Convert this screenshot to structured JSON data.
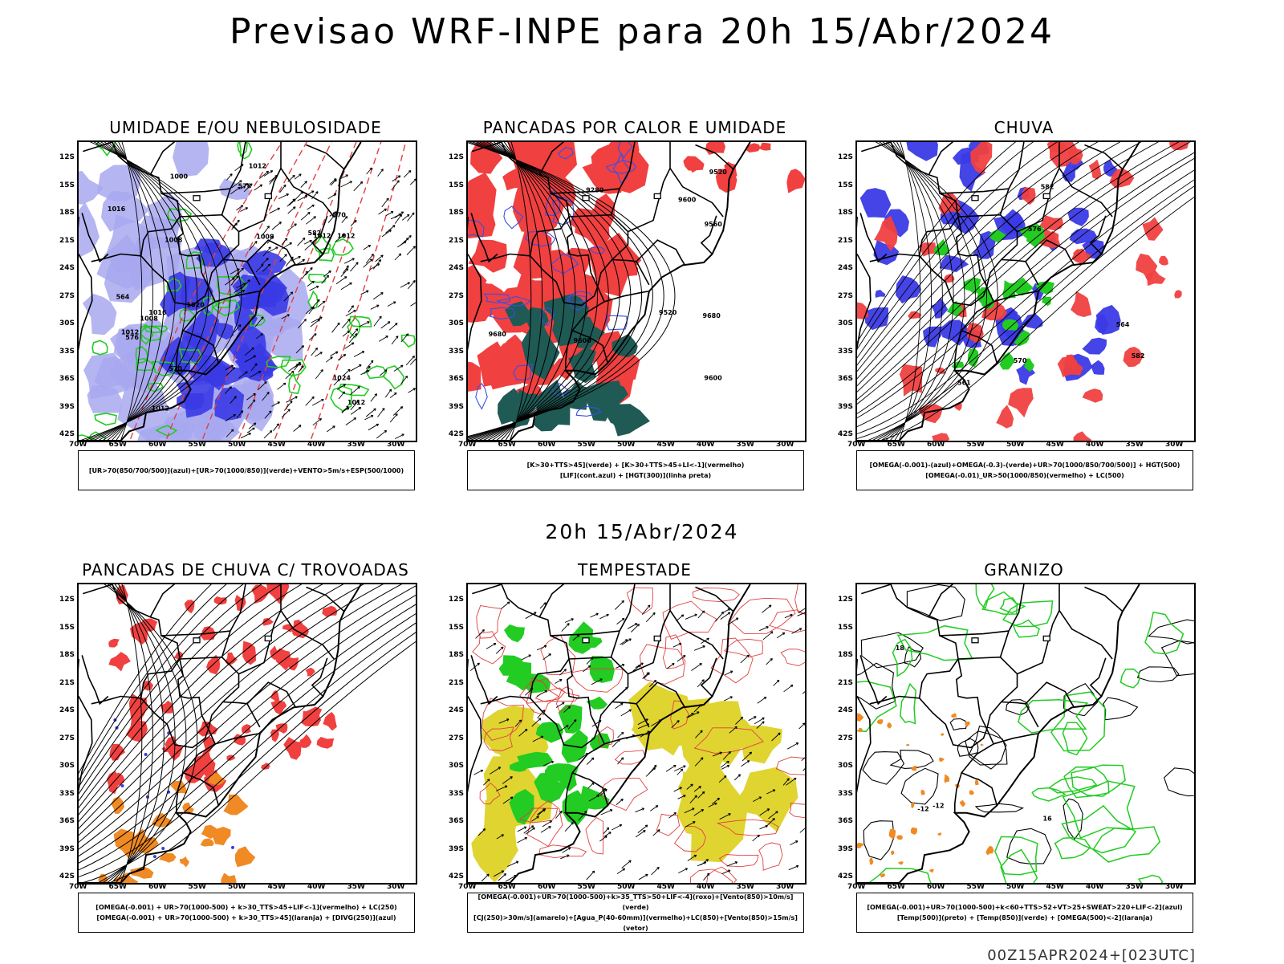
{
  "title": "Previsao WRF-INPE  para 20h 15/Abr/2024",
  "mid_title": "20h 15/Abr/2024",
  "footer": "00Z15APR2024+[023UTC]",
  "axes": {
    "lat_ticks": [
      "12S",
      "15S",
      "18S",
      "21S",
      "24S",
      "27S",
      "30S",
      "33S",
      "36S",
      "39S",
      "42S"
    ],
    "lon_ticks": [
      "70W",
      "65W",
      "60W",
      "55W",
      "50W",
      "45W",
      "40W",
      "35W",
      "30W"
    ]
  },
  "panels": [
    {
      "title": "UMIDADE E/OU NEBULOSIDADE",
      "legend": [
        "[UR>70(850/700/500)](azul)+[UR>70(1000/850)](verde)+VENTO>5m/s+ESP(500/1000)"
      ],
      "fields": [
        "blue-shading",
        "green-contours",
        "red-dashed",
        "black-contours",
        "wind-vectors"
      ],
      "contour_labels": [
        "1012",
        "1012",
        "1016",
        "1008",
        "1012",
        "1020",
        "1016",
        "1012",
        "1008",
        "1008",
        "1012",
        "1024",
        "1000",
        "1012",
        "578",
        "570",
        "564",
        "570",
        "576",
        "582"
      ]
    },
    {
      "title": "PANCADAS POR CALOR E UMIDADE",
      "legend": [
        "[K>30+TTS>45](verde) + [K>30+TTS>45+LI<-1](vermelho)",
        "[LIF](cont.azul) + [HGT(300)](linha preta)"
      ],
      "fields": [
        "red-shading",
        "teal-shading",
        "blue-contours",
        "black-contours"
      ],
      "contour_labels": [
        "9680",
        "9600",
        "9520",
        "9560",
        "9680",
        "9600",
        "9280",
        "9520",
        "9600"
      ]
    },
    {
      "title": "CHUVA",
      "legend": [
        "[OMEGA(-0.001)-(azul)+OMEGA(-0.3)-(verde)+UR>70(1000/850/700/500)] + HGT(500)",
        "[OMEGA(-0.01)_UR>50(1000/850)(vermelho) + LC(500)"
      ],
      "fields": [
        "blue-shading",
        "red-shading",
        "green-shading",
        "streamlines"
      ],
      "contour_labels": [
        "564",
        "570",
        "561",
        "576",
        "582",
        "582"
      ]
    },
    {
      "title": "PANCADAS DE CHUVA C/ TROVOADAS",
      "legend": [
        "[OMEGA(-0.001) + UR>70(1000-500) + k>30_TTS>45+LIF<-1](vermelho) + LC(250)",
        "[OMEGA(-0.001) + UR>70(1000-500) + k>30_TTS>45](laranja) + [DIVG(250)](azul)"
      ],
      "fields": [
        "red-shading",
        "orange-shading",
        "blue-dots",
        "streamlines"
      ]
    },
    {
      "title": "TEMPESTADE",
      "legend": [
        "[OMEGA(-0.001)+UR>70(1000-500)+k>35_TTS>50+LIF<-4](roxo)+[Vento(850)>10m/s](verde)",
        "[CJ(250)>30m/s](amarelo)+[Agua_P(40-60mm)](vermelho)+LC(850)+[Vento(850)>15m/s](vetor)"
      ],
      "fields": [
        "yellow-shading",
        "green-shading",
        "red-contours",
        "wind-vectors"
      ]
    },
    {
      "title": "GRANIZO",
      "legend": [
        "[OMEGA(-0.001)+UR>70(1000-500)+k<60+TTS>52+VT>25+SWEAT>220+LIF<-2](azul)",
        "[Temp(500)](preto) + [Temp(850)](verde) + [OMEGA(500)<-2](laranja)"
      ],
      "fields": [
        "green-contours",
        "black-contours",
        "orange-dots"
      ],
      "contour_labels": [
        "-12",
        "-12",
        "16",
        "18"
      ]
    }
  ],
  "colors": {
    "blue": "#3a3ae6",
    "lightblue": "#a8a8f0",
    "green": "#22cc22",
    "red": "#f04040",
    "orange": "#f08a24",
    "teal": "#1f5a55",
    "yellow": "#e0d430"
  }
}
